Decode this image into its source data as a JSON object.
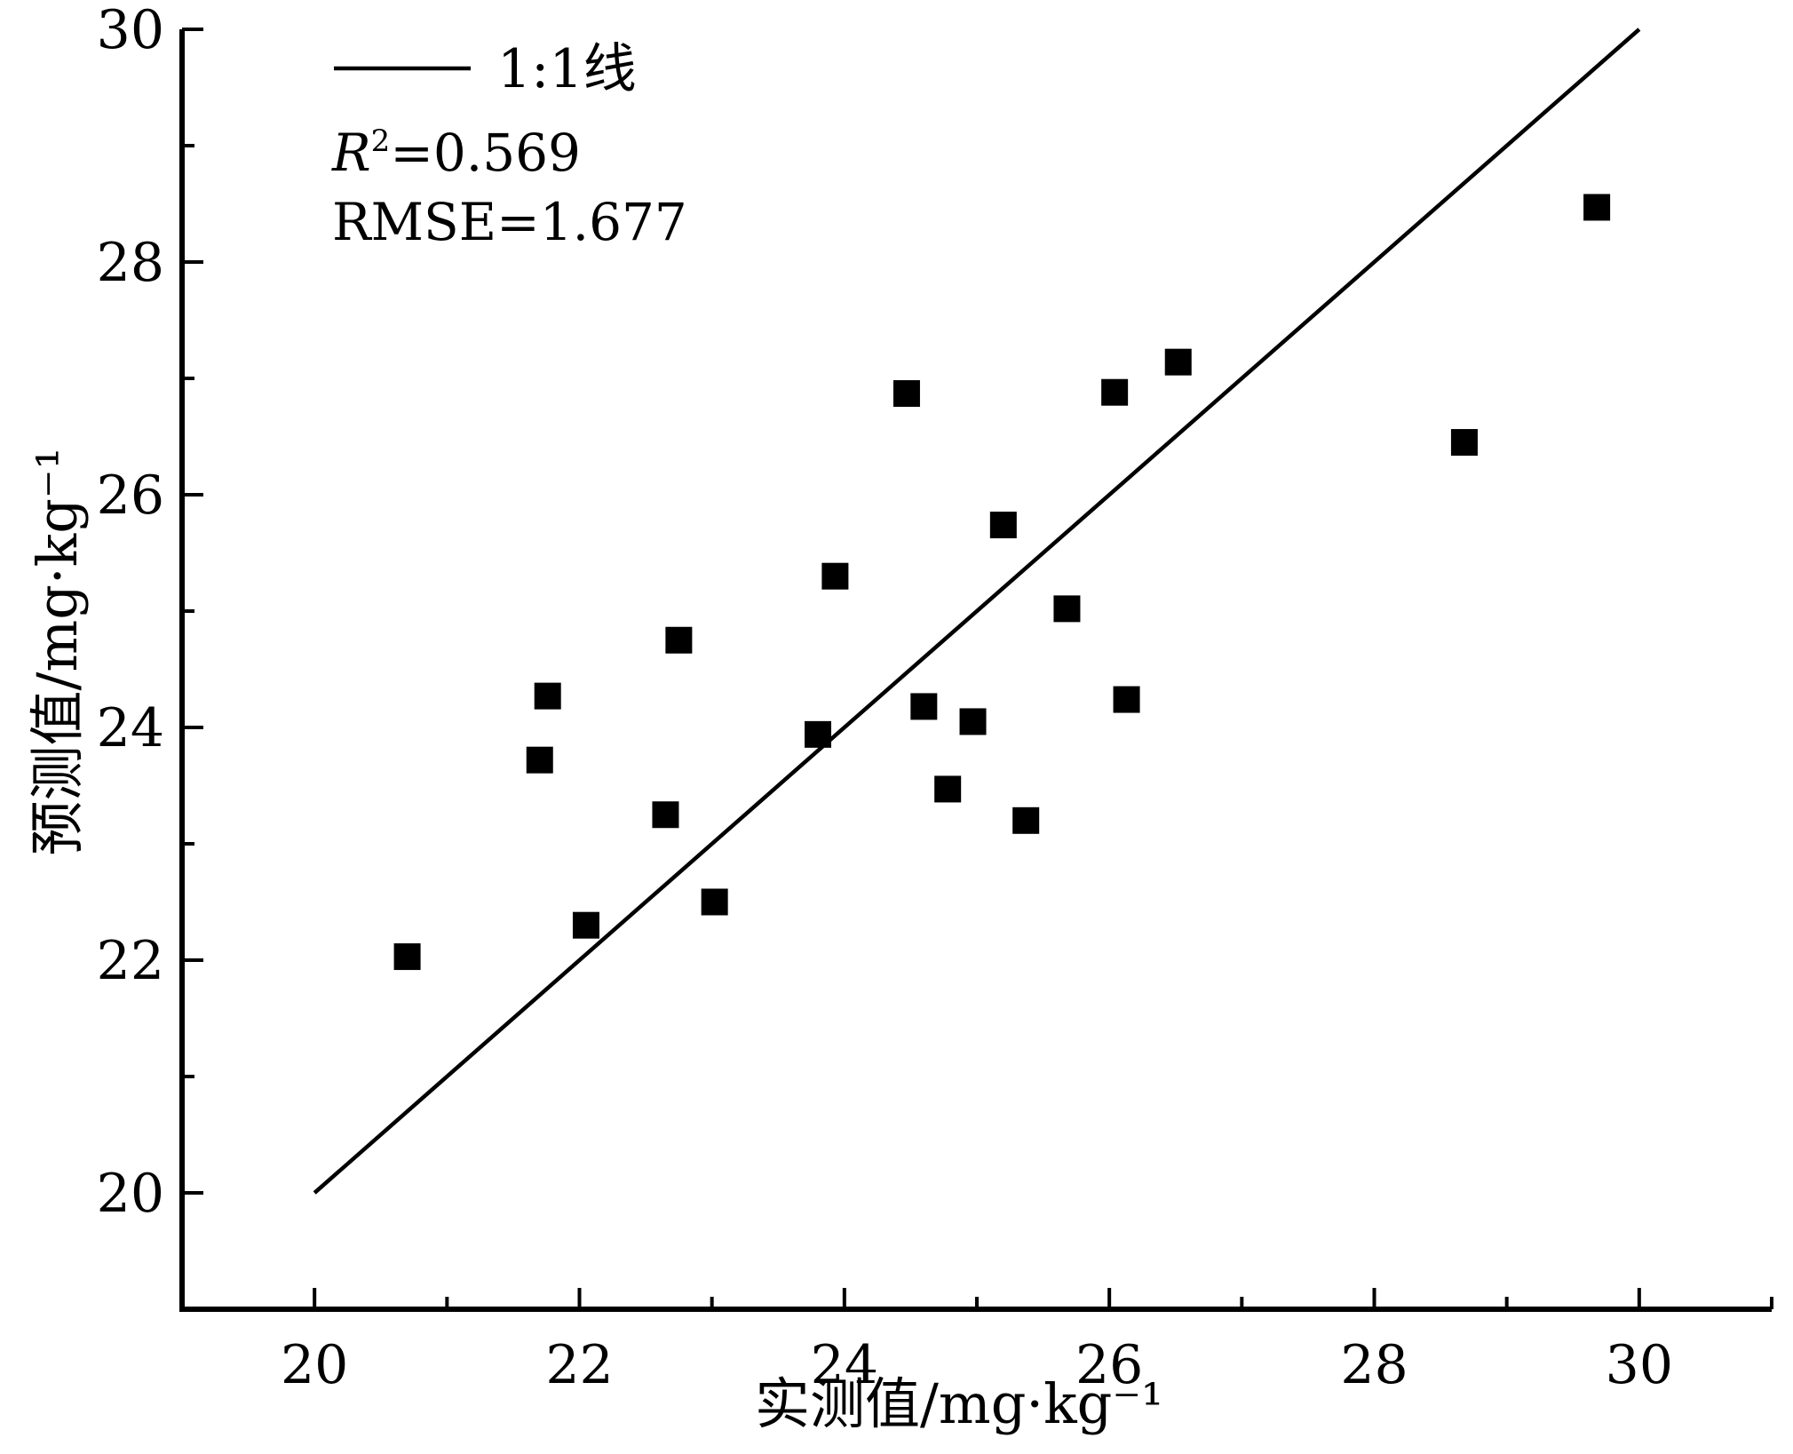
{
  "chart_data": {
    "type": "scatter",
    "title": "",
    "xlabel": "实测值/mg·kg⁻¹",
    "ylabel": "预测值/mg·kg⁻¹",
    "xlim": [
      19,
      31
    ],
    "ylim": [
      19,
      30
    ],
    "xticks": [
      "20",
      "22",
      "24",
      "26",
      "28",
      "30"
    ],
    "yticks": [
      "20",
      "22",
      "24",
      "26",
      "28",
      "30"
    ],
    "xtick_values": [
      20,
      22,
      24,
      26,
      28,
      30
    ],
    "ytick_values": [
      20,
      22,
      24,
      26,
      28,
      30
    ],
    "minor_x": [
      21,
      23,
      25,
      27,
      29,
      31
    ],
    "minor_y": [
      21,
      23,
      25,
      27,
      29
    ],
    "grid": false,
    "legend": {
      "position": "top-left",
      "entries": [
        "1:1线"
      ]
    },
    "stats": {
      "r2_symbol": "R",
      "r2_exp": "2",
      "r2_value": "=0.569",
      "rmse": "RMSE=1.677"
    },
    "reference_line": {
      "name": "1:1线",
      "x": [
        20,
        30
      ],
      "y": [
        20,
        30
      ]
    },
    "series": [
      {
        "marker": "square",
        "color": "#000000",
        "points": [
          [
            20.7,
            22.03
          ],
          [
            21.7,
            23.72
          ],
          [
            21.76,
            24.27
          ],
          [
            22.05,
            22.3
          ],
          [
            22.65,
            23.25
          ],
          [
            22.75,
            24.75
          ],
          [
            23.02,
            22.5
          ],
          [
            23.8,
            23.94
          ],
          [
            23.93,
            25.3
          ],
          [
            24.47,
            26.87
          ],
          [
            24.6,
            24.18
          ],
          [
            24.78,
            23.47
          ],
          [
            24.97,
            24.05
          ],
          [
            25.2,
            25.74
          ],
          [
            25.37,
            23.2
          ],
          [
            25.68,
            25.02
          ],
          [
            26.04,
            26.88
          ],
          [
            26.13,
            24.24
          ],
          [
            26.52,
            27.14
          ],
          [
            28.68,
            26.45
          ],
          [
            29.68,
            28.47
          ]
        ]
      }
    ]
  }
}
